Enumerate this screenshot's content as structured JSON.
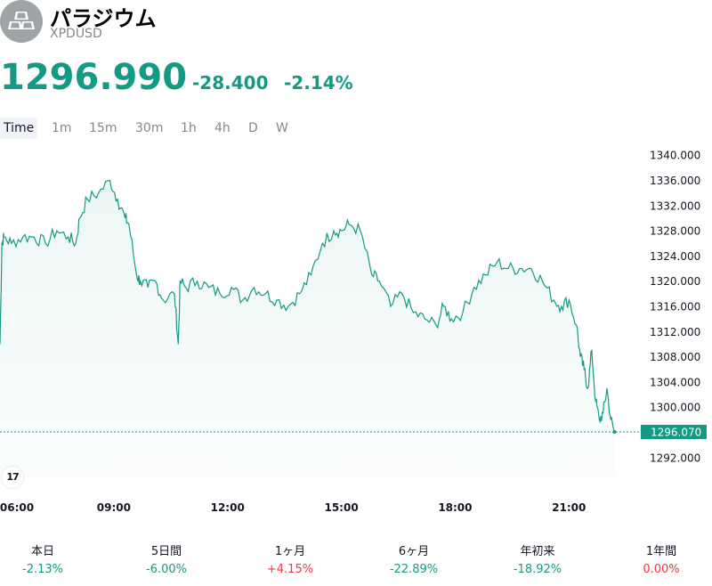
{
  "header": {
    "title": "パラジウム",
    "ticker": "XPDUSD",
    "icon": "gold-bars-icon"
  },
  "quote": {
    "price": "1296.990",
    "change": "-28.400",
    "change_pct": "-2.14%"
  },
  "tabs": [
    "Time",
    "1m",
    "15m",
    "30m",
    "1h",
    "4h",
    "D",
    "W"
  ],
  "active_tab": "Time",
  "colors": {
    "accent": "#139a84",
    "negative": "#f23645",
    "grid_text": "#131722"
  },
  "chart_data": {
    "type": "area",
    "x_ticks": [
      "06:00",
      "09:00",
      "12:00",
      "15:00",
      "18:00",
      "21:00"
    ],
    "y_ticks": [
      "1340.000",
      "1336.000",
      "1332.000",
      "1328.000",
      "1324.000",
      "1320.000",
      "1316.000",
      "1312.000",
      "1308.000",
      "1304.000",
      "1300.000",
      "1292.000"
    ],
    "ylim": [
      1289,
      1342
    ],
    "xlim": [
      6.0,
      22.8
    ],
    "last_value_label": "1296.070",
    "last_value": 1296.07,
    "series": [
      {
        "x": [
          6.0,
          6.05,
          6.1,
          6.3,
          6.6,
          6.9,
          7.2,
          7.5,
          7.8,
          8.0,
          8.1,
          8.3,
          8.6,
          8.9,
          9.1,
          9.3,
          9.4,
          9.6,
          9.7,
          9.9,
          10.1,
          10.3,
          10.6,
          10.7,
          10.75,
          10.9,
          11.2,
          11.5,
          11.8,
          12.1,
          12.4,
          12.7,
          13.0,
          13.3,
          13.6,
          13.9,
          14.2,
          14.5,
          14.8,
          15.0,
          15.2,
          15.5,
          15.8,
          16.0,
          16.3,
          16.6,
          16.9,
          17.2,
          17.5,
          17.7,
          17.9,
          18.2,
          18.5,
          18.8,
          19.1,
          19.4,
          19.7,
          20.0,
          20.3,
          20.6,
          20.8,
          21.0,
          21.2,
          21.3,
          21.4,
          21.5,
          21.6,
          21.7,
          21.8,
          21.9,
          22.0,
          22.1,
          22.2
        ],
        "y": [
          1310,
          1326,
          1327,
          1326,
          1327,
          1327,
          1326,
          1328,
          1327,
          1326,
          1330,
          1333,
          1334,
          1336,
          1333,
          1330,
          1329,
          1321,
          1320,
          1319,
          1320,
          1317,
          1318,
          1310,
          1320,
          1319,
          1320,
          1319,
          1318,
          1319,
          1317,
          1319,
          1318,
          1317,
          1316,
          1318,
          1321,
          1326,
          1328,
          1328,
          1329,
          1328,
          1321,
          1320,
          1316,
          1318,
          1315,
          1314,
          1313,
          1316,
          1314,
          1315,
          1319,
          1321,
          1323,
          1322,
          1322,
          1322,
          1320,
          1317,
          1316,
          1317,
          1313,
          1308,
          1306,
          1303,
          1309,
          1301,
          1298,
          1299,
          1303,
          1298,
          1296.07
        ]
      }
    ]
  },
  "performance": [
    {
      "label": "本日",
      "value": "-2.13%",
      "trend": "down"
    },
    {
      "label": "5日間",
      "value": "-6.00%",
      "trend": "down"
    },
    {
      "label": "1ヶ月",
      "value": "+4.15%",
      "trend": "up"
    },
    {
      "label": "6ヶ月",
      "value": "-22.89%",
      "trend": "down"
    },
    {
      "label": "年初来",
      "value": "-18.92%",
      "trend": "down"
    },
    {
      "label": "1年間",
      "value": "0.00%",
      "trend": "flat"
    }
  ]
}
